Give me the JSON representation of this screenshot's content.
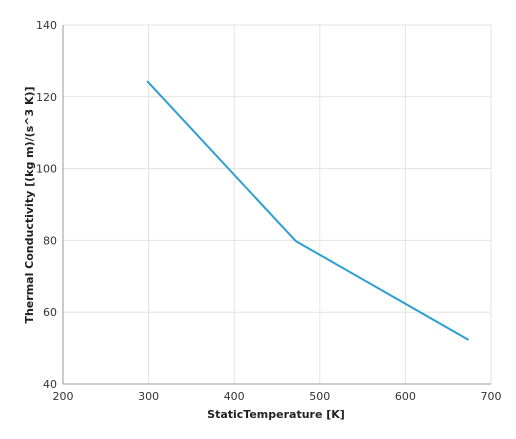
{
  "chart_data": {
    "type": "line",
    "title": "",
    "xlabel": "StaticTemperature [K]",
    "ylabel": "Thermal Conductivity [(kg m)/(s^3 K)]",
    "xlim": [
      200,
      700
    ],
    "ylim": [
      40,
      140
    ],
    "xticks": [
      200,
      300,
      400,
      500,
      600,
      700
    ],
    "yticks": [
      40,
      60,
      80,
      100,
      120,
      140
    ],
    "grid": true,
    "legend": "none",
    "series": [
      {
        "color": "#2e9fd0",
        "x": [
          299,
          472,
          673
        ],
        "y": [
          124.2,
          79.8,
          52.4
        ]
      }
    ]
  },
  "colors": {
    "grid": "#e3e3e3",
    "axis": "#9a9a9a",
    "text": "#333333"
  }
}
